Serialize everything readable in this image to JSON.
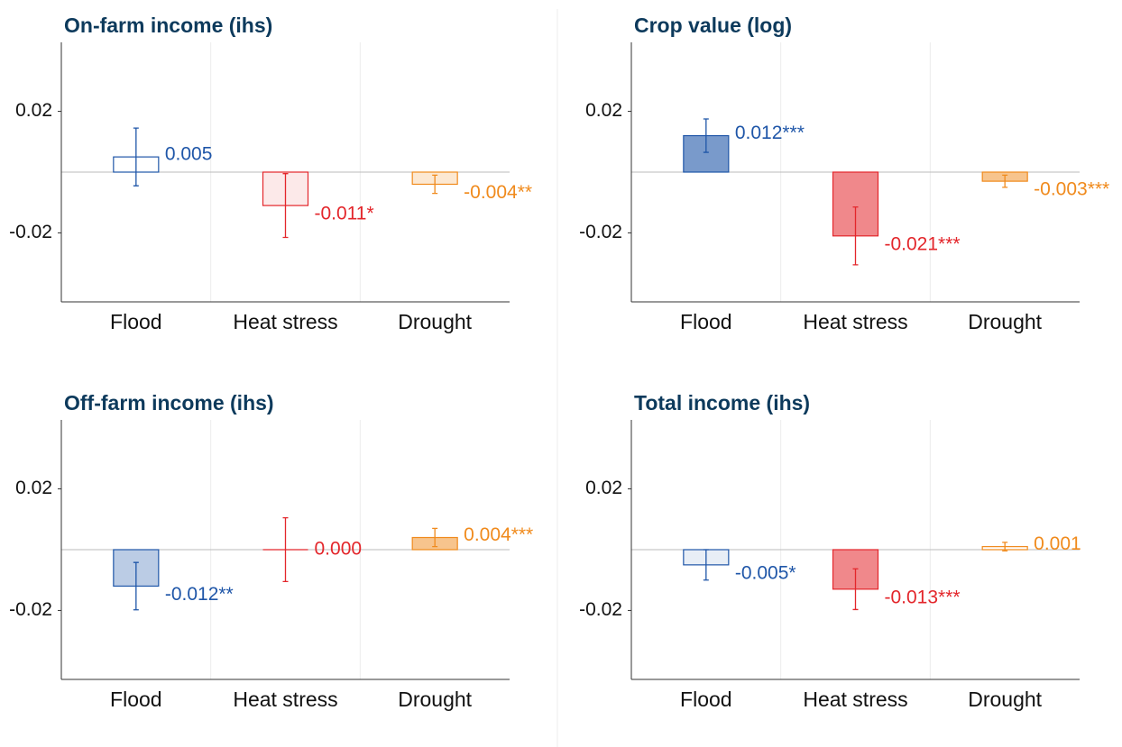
{
  "chart_data": [
    {
      "type": "bar",
      "title": "On-farm income (ihs)",
      "categories": [
        "Flood",
        "Heat stress",
        "Drought"
      ],
      "values": [
        0.005,
        -0.011,
        -0.004
      ],
      "value_labels": [
        "0.005",
        "-0.011*",
        "-0.004**"
      ],
      "errors": [
        0.0095,
        0.0105,
        0.003
      ],
      "colors": [
        "#1f56a8",
        "#e3262b",
        "#f08a1c"
      ],
      "fill_opacity": [
        0,
        0.1,
        0.2
      ],
      "ylim": [
        -0.0427,
        0.0427
      ],
      "yticks": [
        0.02,
        -0.02
      ]
    },
    {
      "type": "bar",
      "title": "Crop value (log)",
      "categories": [
        "Flood",
        "Heat stress",
        "Drought"
      ],
      "values": [
        0.012,
        -0.021,
        -0.003
      ],
      "value_labels": [
        "0.012***",
        "-0.021***",
        "-0.003***"
      ],
      "errors": [
        0.0055,
        0.0095,
        0.002
      ],
      "colors": [
        "#1f56a8",
        "#e3262b",
        "#f08a1c"
      ],
      "fill_opacity": [
        0.6,
        0.55,
        0.5
      ],
      "ylim": [
        -0.0427,
        0.0427
      ],
      "yticks": [
        0.02,
        -0.02
      ]
    },
    {
      "type": "bar",
      "title": "Off-farm income (ihs)",
      "categories": [
        "Flood",
        "Heat stress",
        "Drought"
      ],
      "values": [
        -0.012,
        0.0,
        0.004
      ],
      "value_labels": [
        "-0.012**",
        "0.000",
        "0.004***"
      ],
      "errors": [
        0.0078,
        0.0105,
        0.003
      ],
      "colors": [
        "#1f56a8",
        "#e3262b",
        "#f08a1c"
      ],
      "fill_opacity": [
        0.3,
        0,
        0.5
      ],
      "ylim": [
        -0.0427,
        0.0427
      ],
      "yticks": [
        0.02,
        -0.02
      ]
    },
    {
      "type": "bar",
      "title": "Total income (ihs)",
      "categories": [
        "Flood",
        "Heat stress",
        "Drought"
      ],
      "values": [
        -0.005,
        -0.013,
        0.001
      ],
      "value_labels": [
        "-0.005*",
        "-0.013***",
        "0.001"
      ],
      "errors": [
        0.005,
        0.0067,
        0.0014
      ],
      "colors": [
        "#1f56a8",
        "#e3262b",
        "#f08a1c"
      ],
      "fill_opacity": [
        0.1,
        0.55,
        0
      ],
      "ylim": [
        -0.0427,
        0.0427
      ],
      "yticks": [
        0.02,
        -0.02
      ]
    }
  ]
}
